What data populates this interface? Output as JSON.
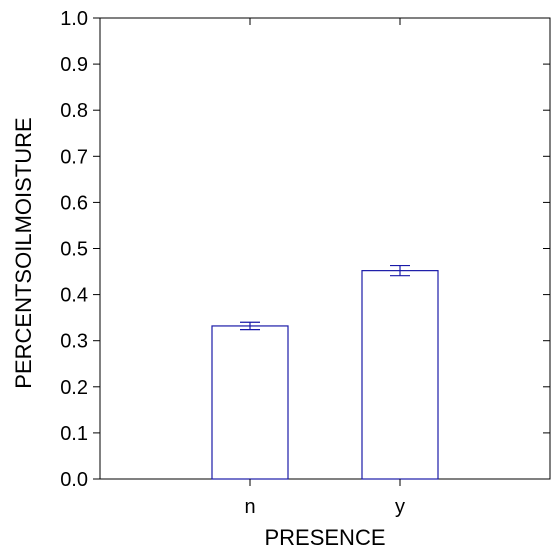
{
  "chart_data": {
    "type": "bar",
    "categories": [
      "n",
      "y"
    ],
    "values": [
      0.332,
      0.452
    ],
    "error": [
      0.008,
      0.011
    ],
    "xlabel": "PRESENCE",
    "ylabel": "PERCENTSOILMOISTURE",
    "ylim": [
      0,
      1
    ],
    "yticks": [
      "0.0",
      "0.1",
      "0.2",
      "0.3",
      "0.4",
      "0.5",
      "0.6",
      "0.7",
      "0.8",
      "0.9",
      "1.0"
    ],
    "grid": false,
    "bar_fill": "#ffffff",
    "bar_stroke": "#1a1aa8",
    "axis_color": "#000000"
  }
}
